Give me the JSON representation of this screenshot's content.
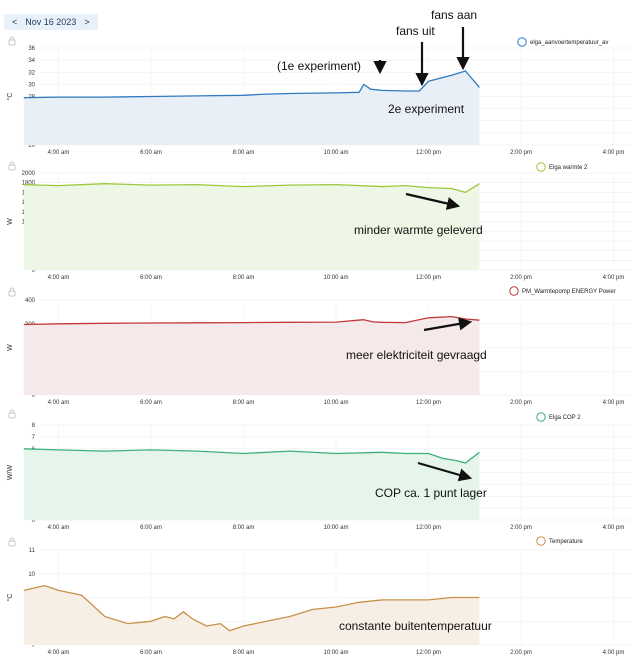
{
  "header": {
    "prev_label": "<",
    "date": "Nov 16 2023",
    "next_label": ">"
  },
  "x_ticks": [
    "4:00 am",
    "6:00 am",
    "8:00 am",
    "10:00 am",
    "12:00 pm",
    "2:00 pm",
    "4:00 pm"
  ],
  "chart_data": [
    {
      "type": "line",
      "legend": "elga_aanvoertemperatuur_av",
      "ylabel": "°C",
      "ylim": [
        20,
        36
      ],
      "yticks": [
        20,
        22,
        24,
        26,
        28,
        30,
        32,
        34,
        36
      ],
      "color": "#2f7bbf",
      "fill": "#e9eff6",
      "x_hours": [
        3.25,
        4,
        5,
        6,
        7,
        8,
        8.5,
        9,
        10,
        10.5,
        10.6,
        10.75,
        11,
        11.5,
        11.8,
        12,
        12.5,
        12.8,
        13.1
      ],
      "values": [
        27.8,
        27.9,
        27.9,
        28,
        28.1,
        28.2,
        28.4,
        28.5,
        28.6,
        28.7,
        30,
        29.2,
        29,
        28.9,
        28.9,
        30.5,
        31.5,
        32.2,
        29.5
      ],
      "annotations": [
        {
          "text": "(1e experiment)"
        },
        {
          "text": "fans uit"
        },
        {
          "text": "fans aan"
        },
        {
          "text": "2e experiment"
        }
      ]
    },
    {
      "type": "line",
      "legend": "Elga warmte 2",
      "ylabel": "W",
      "ylim": [
        0,
        2000
      ],
      "yticks": [
        0,
        200,
        400,
        600,
        800,
        1000,
        1200,
        1400,
        1600,
        1800,
        2000
      ],
      "color": "#9cc93a",
      "fill": "#eef6e6",
      "x_hours": [
        3.25,
        4,
        5,
        6,
        7,
        8,
        9,
        10,
        11,
        11.5,
        12,
        12.5,
        12.8,
        13.1
      ],
      "values": [
        1760,
        1740,
        1780,
        1750,
        1760,
        1720,
        1750,
        1760,
        1720,
        1740,
        1700,
        1680,
        1600,
        1780
      ],
      "annotations": [
        {
          "text": "minder warmte geleverd"
        }
      ]
    },
    {
      "type": "line",
      "legend": "PM_Warmtepomp ENERGY Power",
      "ylabel": "W",
      "ylim": [
        0,
        400
      ],
      "yticks": [
        0,
        100,
        200,
        300,
        400
      ],
      "color": "#c03a3a",
      "fill": "#f6e9e9",
      "x_hours": [
        3.25,
        4,
        5,
        6,
        7,
        8,
        9,
        10,
        10.6,
        10.8,
        11,
        11.5,
        12,
        12.5,
        12.8,
        13.1
      ],
      "values": [
        297,
        300,
        302,
        303,
        304,
        305,
        306,
        307,
        317,
        308,
        306,
        305,
        325,
        330,
        320,
        315
      ],
      "annotations": [
        {
          "text": "meer elektriciteit gevraagd"
        }
      ]
    },
    {
      "type": "line",
      "legend": "Elga COP 2",
      "ylabel": "W/W",
      "ylim": [
        0,
        8
      ],
      "yticks": [
        0,
        1,
        2,
        3,
        4,
        5,
        6,
        7,
        8
      ],
      "color": "#3db07a",
      "fill": "#e6f5ec",
      "x_hours": [
        3.25,
        4,
        5,
        6,
        7,
        8,
        9,
        10,
        11,
        11.5,
        12,
        12.3,
        12.6,
        12.8,
        13.1
      ],
      "values": [
        6,
        5.9,
        5.8,
        5.9,
        5.8,
        5.6,
        5.8,
        5.6,
        5.7,
        5.6,
        5.6,
        5.2,
        5.0,
        4.8,
        5.7
      ],
      "annotations": [
        {
          "text": "COP ca. 1 punt lager"
        }
      ]
    },
    {
      "type": "line",
      "legend": "Temperature",
      "ylabel": "°C",
      "ylim": [
        7,
        11
      ],
      "yticks": [
        7,
        8,
        9,
        10,
        11
      ],
      "color": "#c8914a",
      "fill": "#f7eee5",
      "x_hours": [
        3.25,
        3.7,
        4,
        4.5,
        5,
        5.5,
        6,
        6.3,
        6.5,
        6.7,
        6.9,
        7.2,
        7.5,
        7.7,
        8,
        8.5,
        9,
        9.5,
        10,
        10.5,
        11,
        11.5,
        12,
        12.5,
        13.1
      ],
      "values": [
        9.3,
        9.5,
        9.3,
        9.1,
        8.2,
        7.9,
        8.0,
        8.2,
        8.1,
        8.4,
        8.1,
        7.8,
        7.9,
        7.6,
        7.8,
        8.0,
        8.2,
        8.5,
        8.6,
        8.8,
        8.9,
        8.9,
        8.9,
        9.0,
        9.0
      ],
      "annotations": [
        {
          "text": "constante buitentemperatuur"
        }
      ]
    }
  ]
}
